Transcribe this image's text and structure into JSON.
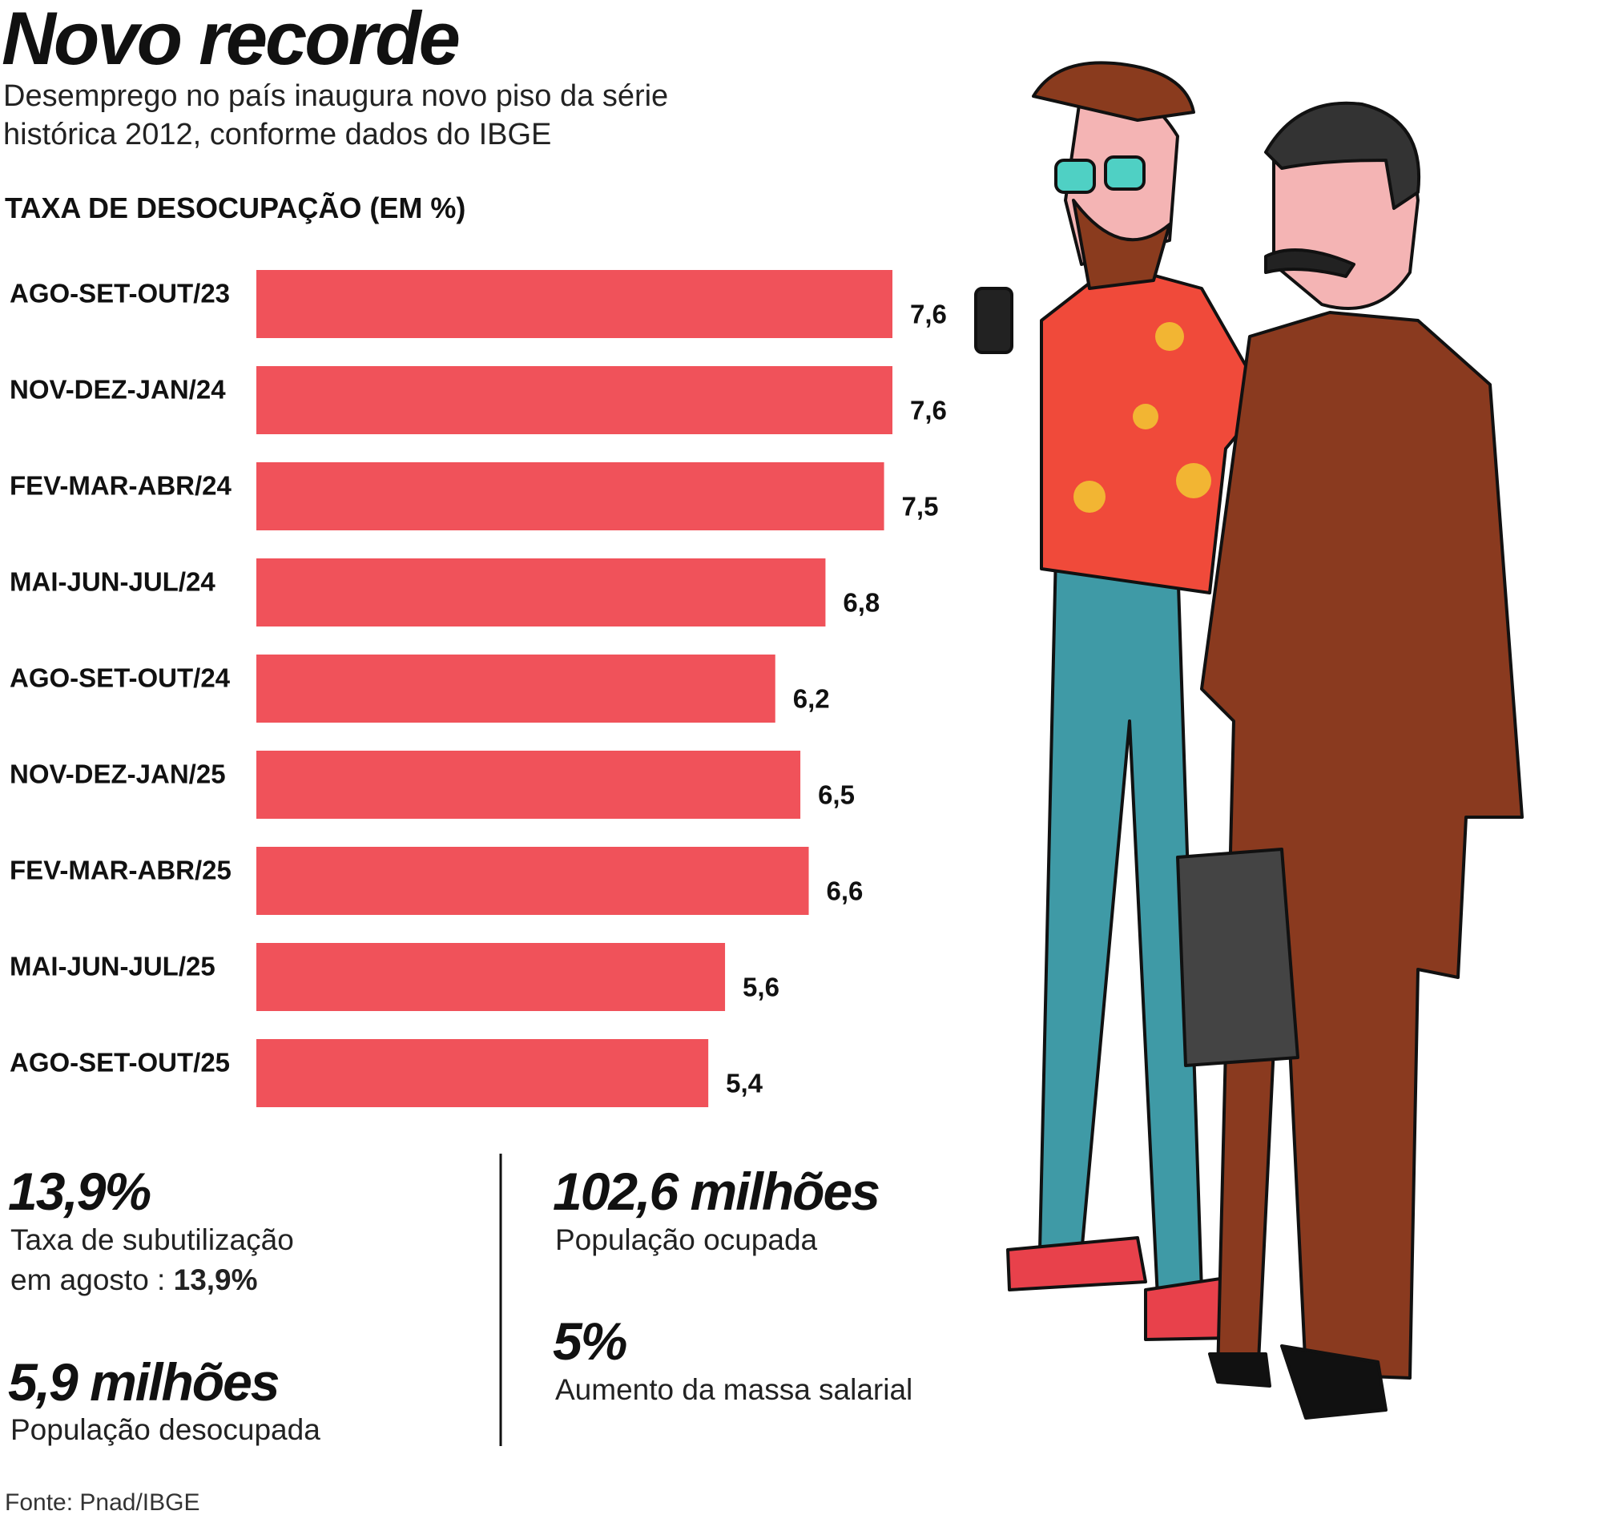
{
  "chart_data": {
    "type": "bar",
    "orientation": "horizontal",
    "title": "Novo recorde",
    "subtitle": [
      "Desemprego no país inaugura novo piso da série",
      "histórica 2012, conforme dados do IBGE"
    ],
    "ylabel": "TAXA DE DESOCUPAÇÃO (EM %)",
    "categories": [
      "AGO-SET-OUT/23",
      "NOV-DEZ-JAN/24",
      "FEV-MAR-ABR/24",
      "MAI-JUN-JUL/24",
      "AGO-SET-OUT/24",
      "NOV-DEZ-JAN/25",
      "FEV-MAR-ABR/25",
      "MAI-JUN-JUL/25",
      "AGO-SET-OUT/25"
    ],
    "values": [
      7.6,
      7.6,
      7.5,
      6.8,
      6.2,
      6.5,
      6.6,
      5.6,
      5.4
    ],
    "value_labels": [
      "7,6",
      "7,6",
      "7,5",
      "6,8",
      "6,2",
      "6,5",
      "6,6",
      "5,6",
      "5,4"
    ],
    "color": "#f0525a"
  },
  "stats": [
    {
      "value": "13,9%",
      "label": "Taxa de subutilização",
      "note": "em agosto :",
      "note_value": "13,9%"
    },
    {
      "value": "5,9 milhões",
      "label": "População desocupada"
    },
    {
      "value": "102,6 milhões",
      "label": "População ocupada"
    },
    {
      "value": "5%",
      "label": "Aumento da massa salarial"
    }
  ],
  "source": "Fonte: Pnad/IBGE"
}
